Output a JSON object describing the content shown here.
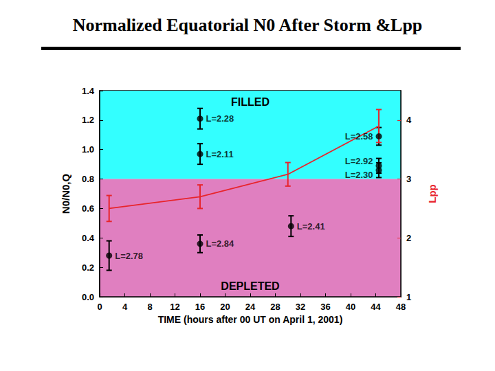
{
  "chart_data": {
    "type": "scatter",
    "title": "Normalized Equatorial N0 After Storm &Lpp",
    "x_label": "TIME (hours after 00 UT on April 1, 2001)",
    "y_label": "N0/N0,Q",
    "y2_label": "Lpp",
    "xlim": [
      0,
      48
    ],
    "xticks": [
      0,
      4,
      8,
      12,
      16,
      20,
      24,
      28,
      32,
      36,
      40,
      44,
      48
    ],
    "ylim": [
      0,
      1.4
    ],
    "yticks": [
      {
        "value": 0,
        "label": "0.0"
      },
      0.2,
      0.4,
      0.6,
      0.8,
      {
        "value": 1,
        "label": "1.0"
      },
      1.2,
      1.4
    ],
    "y2lim": [
      1,
      4.5
    ],
    "y2ticks": [
      1,
      2,
      3,
      4
    ],
    "grid": false,
    "regions": [
      {
        "label": "FILLED",
        "from": 0.8,
        "to": 1.4,
        "color": "#33ffff"
      },
      {
        "label": "DEPLETED",
        "from": 0,
        "to": 0.8,
        "color": "#e07fc0"
      }
    ],
    "series": [
      {
        "type": "scatter",
        "color": "#000000",
        "marker": "circle",
        "x": [
          1.5,
          16,
          16,
          16,
          30.5,
          44.5,
          44.5,
          44.5
        ],
        "values": [
          0.28,
          1.21,
          0.97,
          0.36,
          0.48,
          1.09,
          0.89,
          0.86
        ],
        "errors": [
          0.1,
          0.07,
          0.07,
          0.06,
          0.07,
          0.06,
          0.05,
          0.05
        ],
        "point_labels": [
          "L=2.78",
          "L=2.28",
          "L=2.11",
          "L=2.84",
          "L=2.41",
          "L=2.58",
          "L=2.92",
          "L=2.30"
        ]
      },
      {
        "type": "line",
        "axis": "y2",
        "color": "#e8242b",
        "marker": "none",
        "x": [
          1.5,
          16,
          30,
          44.5
        ],
        "values": [
          2.5,
          2.7,
          3.08,
          3.9
        ],
        "errors": [
          0.22,
          0.2,
          0.2,
          0.28
        ]
      }
    ]
  }
}
